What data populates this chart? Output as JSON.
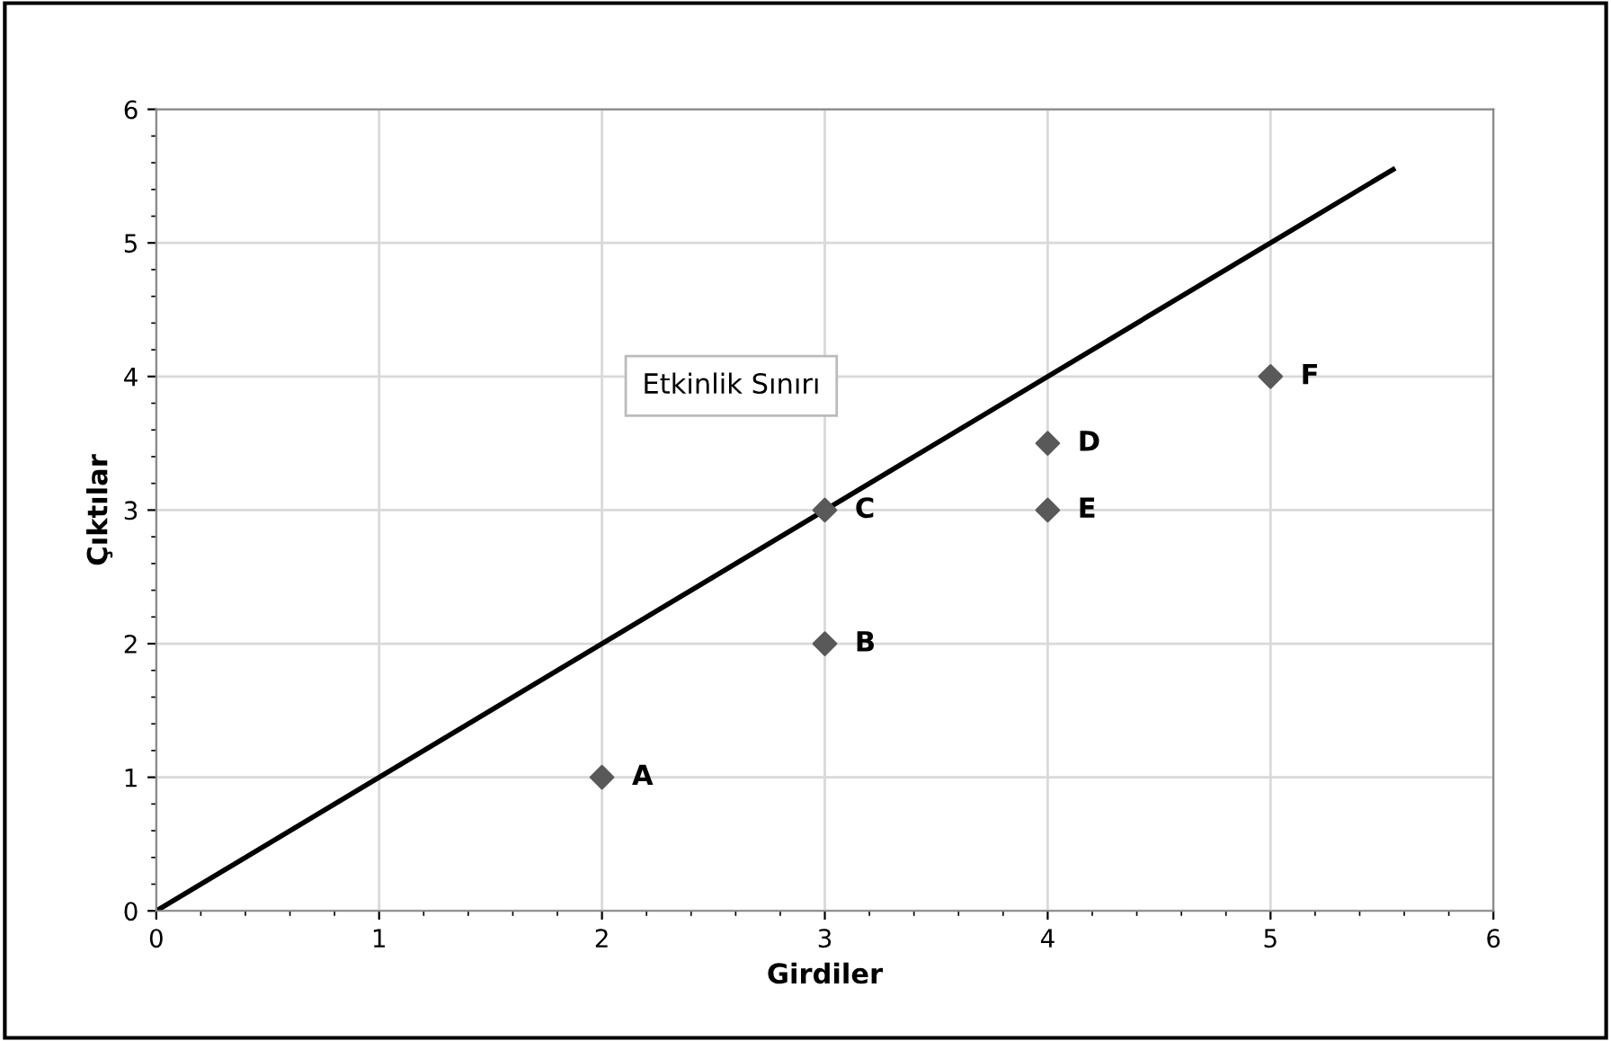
{
  "chart_data": {
    "type": "scatter",
    "xlabel": "Girdiler",
    "ylabel": "Çıktılar",
    "xlim": [
      0,
      6
    ],
    "ylim": [
      0,
      6
    ],
    "xticks": [
      0,
      1,
      2,
      3,
      4,
      5,
      6
    ],
    "yticks": [
      0,
      1,
      2,
      3,
      4,
      5,
      6
    ],
    "grid": true,
    "legend": false,
    "marker": "diamond",
    "annotations": [
      "Etkinlik Sınırı"
    ],
    "series": [
      {
        "color": "#595959",
        "x": [
          2,
          3,
          3,
          4,
          4,
          5
        ],
        "values": [
          1,
          2,
          3,
          3.5,
          3,
          4
        ],
        "value_labels": [
          "A",
          "B",
          "C",
          "D",
          "E",
          "F"
        ]
      },
      {
        "type": "line",
        "color": "#000000",
        "marker": "none",
        "line_style": "solid",
        "x": [
          0,
          5.55
        ],
        "values": [
          0,
          5.55
        ]
      }
    ]
  }
}
